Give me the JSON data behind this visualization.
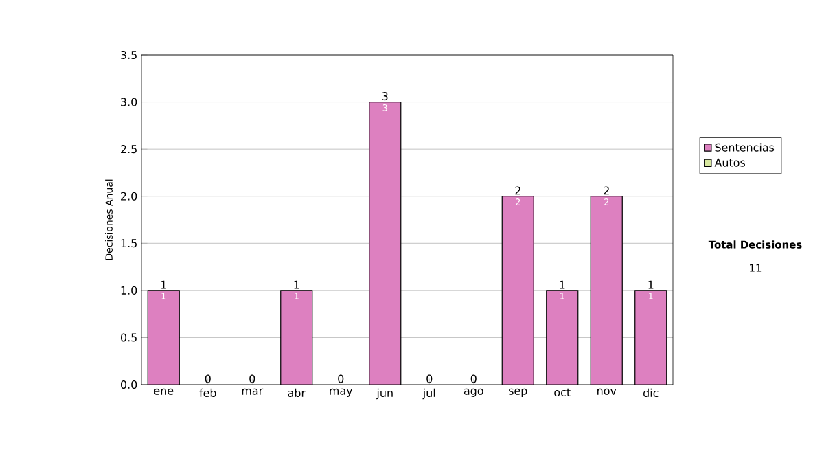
{
  "chart_data": {
    "type": "bar",
    "stacked": true,
    "ylabel": "Decisiones Anual",
    "categories": [
      "ene",
      "feb",
      "mar",
      "abr",
      "may",
      "jun",
      "jul",
      "ago",
      "sep",
      "oct",
      "nov",
      "dic"
    ],
    "series": [
      {
        "name": "Sentencias",
        "color": "#dd80c0",
        "values": [
          1,
          0,
          0,
          1,
          0,
          3,
          0,
          0,
          2,
          1,
          2,
          1
        ],
        "value_labels": [
          "1",
          null,
          null,
          "1",
          null,
          "3",
          null,
          null,
          "2",
          "1",
          "2",
          "1"
        ]
      },
      {
        "name": "Autos",
        "color": "#d8e8a0",
        "values": [
          0,
          0,
          0,
          0,
          0,
          0,
          0,
          0,
          0,
          0,
          0,
          0
        ]
      }
    ],
    "totals": [
      "1",
      "0",
      "0",
      "1",
      "0",
      "3",
      "0",
      "0",
      "2",
      "1",
      "2",
      "1"
    ],
    "ylim": [
      0,
      3.5
    ],
    "yticks": [
      {
        "value": 0,
        "label": "0.0"
      },
      {
        "value": 0.5,
        "label": "0.5"
      },
      {
        "value": 1,
        "label": "1.0"
      },
      {
        "value": 1.5,
        "label": "1.5"
      },
      {
        "value": 2,
        "label": "2.0"
      },
      {
        "value": 2.5,
        "label": "2.5"
      },
      {
        "value": 3,
        "label": "3.0"
      },
      {
        "value": 3.5,
        "label": "3.5"
      }
    ],
    "grid": "y",
    "legend": "right",
    "annotations": [
      "Total Decisiones",
      "11"
    ]
  }
}
